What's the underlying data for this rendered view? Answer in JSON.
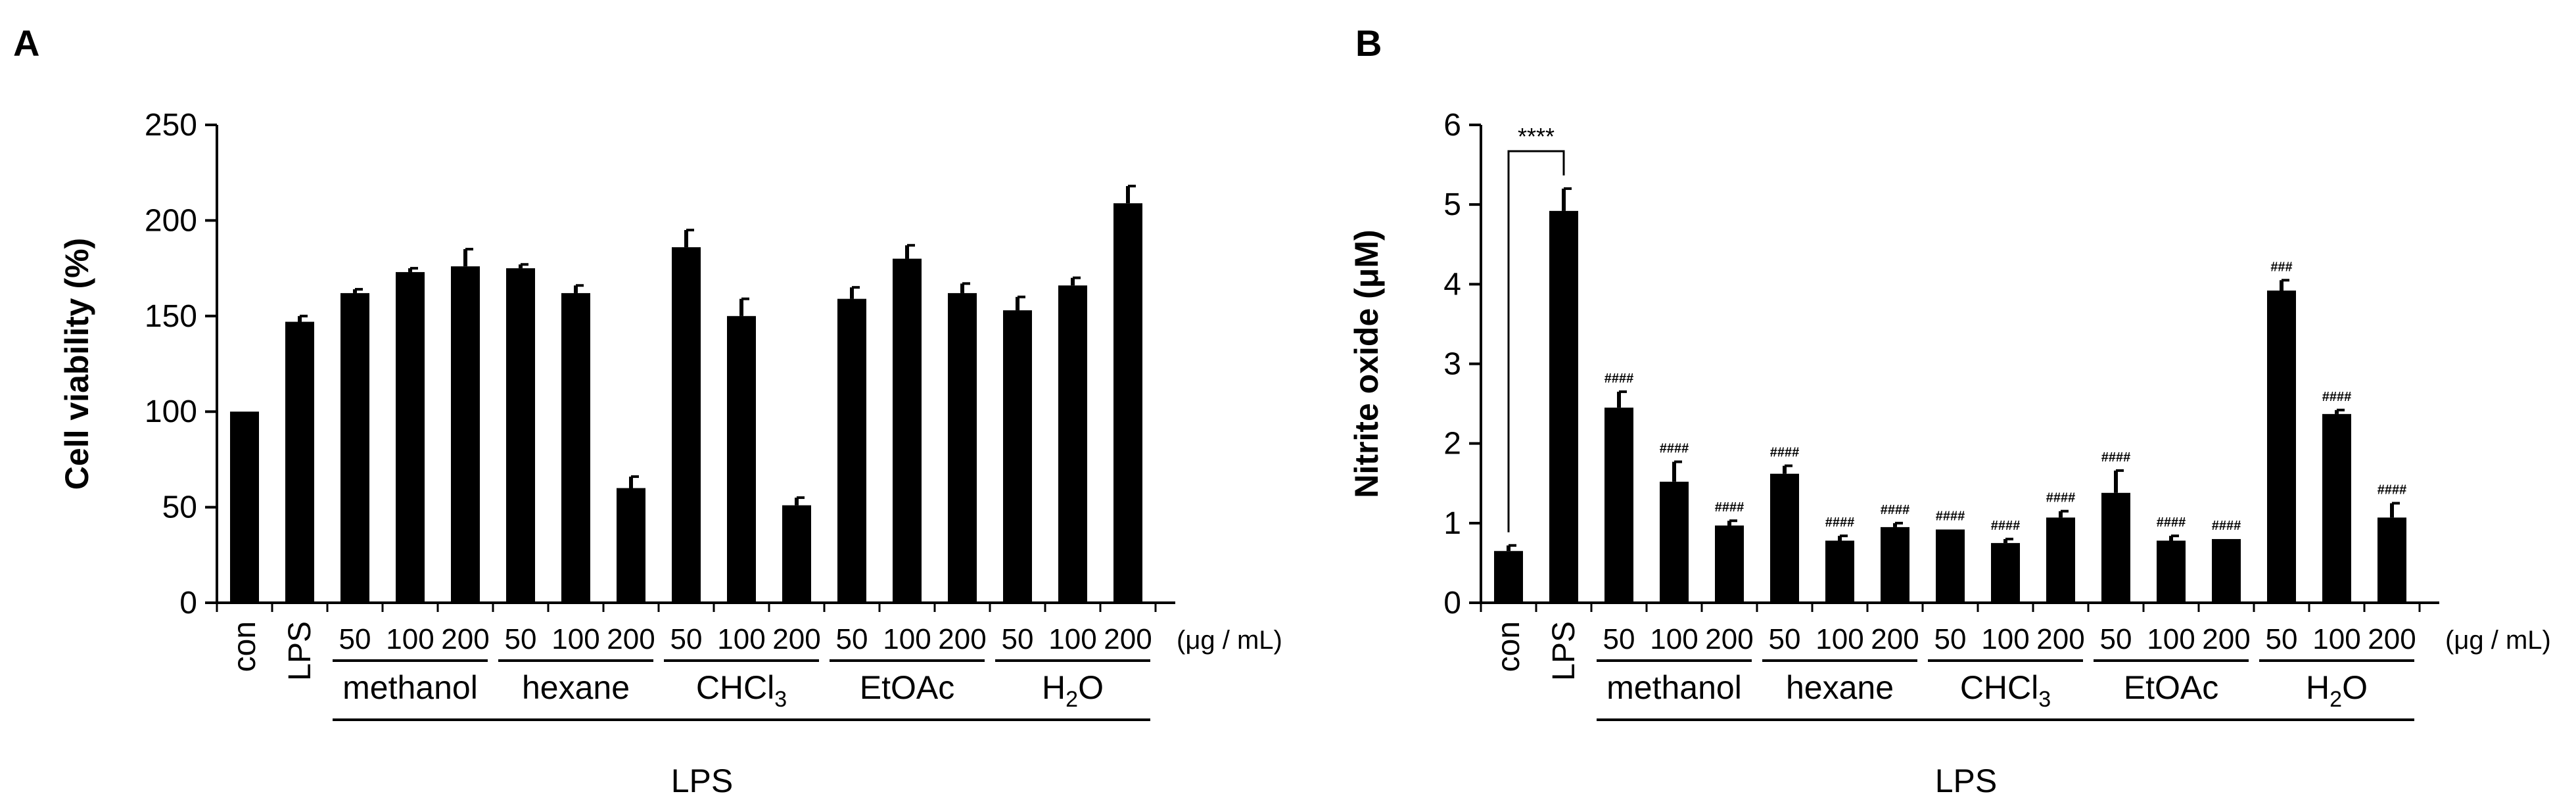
{
  "colors": {
    "bar": "#000000",
    "axis": "#000000",
    "background": "#ffffff"
  },
  "chart_data": [
    {
      "panel_label": "A",
      "type": "bar",
      "title": "",
      "xlabel": "",
      "ylabel": "Cell viability (%)",
      "ylim": [
        0,
        250
      ],
      "yticks": [
        0,
        50,
        100,
        150,
        200,
        250
      ],
      "grid": false,
      "categories": [
        "con",
        "LPS",
        "50",
        "100",
        "200",
        "50",
        "100",
        "200",
        "50",
        "100",
        "200",
        "50",
        "100",
        "200",
        "50",
        "100",
        "200"
      ],
      "values": [
        100,
        147,
        162,
        173,
        176,
        175,
        162,
        60,
        186,
        150,
        51,
        159,
        180,
        162,
        153,
        166,
        209
      ],
      "errors": [
        0,
        3,
        2,
        2,
        9,
        2,
        4,
        6,
        9,
        9,
        4,
        6,
        7,
        5,
        7,
        4,
        9
      ],
      "significance": [],
      "bracket": null,
      "groups": [
        {
          "sub": "methanol",
          "start": 2,
          "end": 4
        },
        {
          "sub": "hexane",
          "start": 5,
          "end": 7
        },
        {
          "base": "CHCl",
          "sub": "3",
          "start": 8,
          "end": 10
        },
        {
          "sub": "EtOAc",
          "start": 11,
          "end": 13
        },
        {
          "base": "H",
          "sub": "2",
          "tail": "O",
          "start": 14,
          "end": 16
        }
      ],
      "unit_label": "(μg / mL)",
      "treatment_label": "LPS"
    },
    {
      "panel_label": "B",
      "type": "bar",
      "title": "",
      "xlabel": "",
      "ylabel": "Nitrite oxide (μM)",
      "ylim": [
        0,
        6
      ],
      "yticks": [
        0,
        1,
        2,
        3,
        4,
        5,
        6
      ],
      "grid": false,
      "categories": [
        "con",
        "LPS",
        "50",
        "100",
        "200",
        "50",
        "100",
        "200",
        "50",
        "100",
        "200",
        "50",
        "100",
        "200",
        "50",
        "100",
        "200"
      ],
      "values": [
        0.65,
        4.92,
        2.45,
        1.52,
        0.97,
        1.62,
        0.78,
        0.95,
        0.92,
        0.75,
        1.07,
        1.38,
        0.78,
        0.8,
        3.92,
        2.37,
        1.07
      ],
      "errors": [
        0.07,
        0.28,
        0.2,
        0.25,
        0.06,
        0.1,
        0.06,
        0.05,
        0,
        0.05,
        0.08,
        0.28,
        0.06,
        0,
        0.13,
        0.05,
        0.18
      ],
      "significance": [
        "",
        "",
        "####",
        "####",
        "####",
        "####",
        "####",
        "####",
        "####",
        "####",
        "####",
        "####",
        "####",
        "####",
        "###",
        "####",
        "####"
      ],
      "bracket": {
        "from": 0,
        "to": 1,
        "label": "****"
      },
      "groups": [
        {
          "sub": "methanol",
          "start": 2,
          "end": 4
        },
        {
          "sub": "hexane",
          "start": 5,
          "end": 7
        },
        {
          "base": "CHCl",
          "sub": "3",
          "start": 8,
          "end": 10
        },
        {
          "sub": "EtOAc",
          "start": 11,
          "end": 13
        },
        {
          "base": "H",
          "sub": "2",
          "tail": "O",
          "start": 14,
          "end": 16
        }
      ],
      "unit_label": "(μg / mL)",
      "treatment_label": "LPS"
    }
  ]
}
